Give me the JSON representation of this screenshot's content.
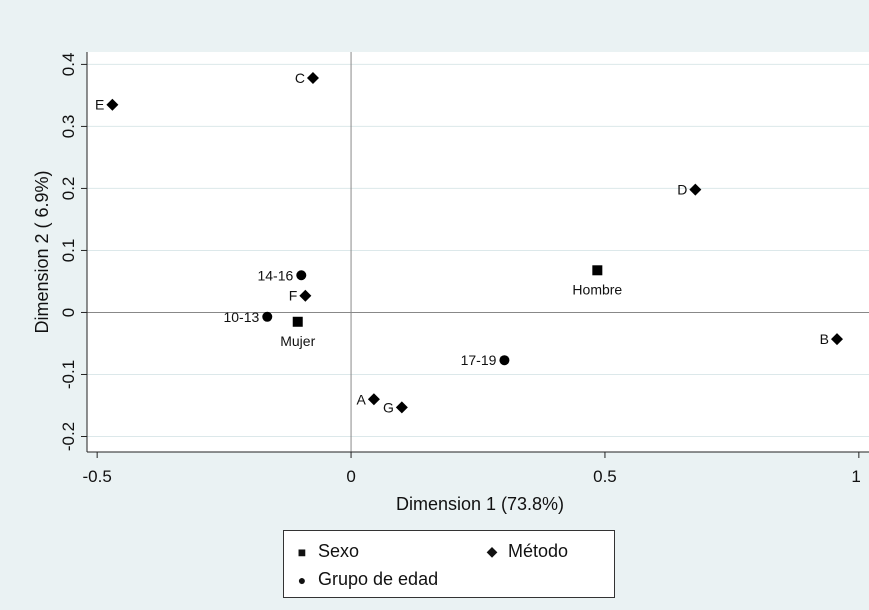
{
  "chart_data": {
    "type": "scatter",
    "title": "",
    "xlabel": "Dimension 1 (73.8%)",
    "ylabel": "Dimension 2 ( 6.9%)",
    "xlim": [
      -0.52,
      1.02
    ],
    "ylim": [
      -0.225,
      0.42
    ],
    "xticks": [
      -0.5,
      0,
      0.5,
      1
    ],
    "xtick_labels": [
      "-0.5",
      "0",
      "0.5",
      "1"
    ],
    "yticks": [
      -0.2,
      -0.1,
      0,
      0.1,
      0.2,
      0.3,
      0.4
    ],
    "ytick_labels": [
      "-0.2",
      "-0.1",
      "0",
      "0.1",
      "0.2",
      "0.3",
      "0.4"
    ],
    "grid": "horizontal",
    "reference_lines": {
      "x": 0,
      "y": 0
    },
    "colors": {
      "background": "#eaf2f3",
      "plot_background": "#ffffff",
      "grid": "#dce8ea",
      "marker": "#000000"
    },
    "legend_position": "bottom",
    "series": [
      {
        "name": "Sexo",
        "marker": "square",
        "points": [
          {
            "label": "Hombre",
            "x": 0.485,
            "y": 0.068,
            "label_pos": "below"
          },
          {
            "label": "Mujer",
            "x": -0.105,
            "y": -0.015,
            "label_pos": "below"
          }
        ]
      },
      {
        "name": "Grupo de edad",
        "marker": "circle",
        "points": [
          {
            "label": "10-13",
            "x": -0.165,
            "y": -0.007,
            "label_pos": "left"
          },
          {
            "label": "14-16",
            "x": -0.098,
            "y": 0.06,
            "label_pos": "left"
          },
          {
            "label": "17-19",
            "x": 0.302,
            "y": -0.077,
            "label_pos": "left"
          }
        ]
      },
      {
        "name": "Método",
        "marker": "diamond",
        "points": [
          {
            "label": "A",
            "x": 0.045,
            "y": -0.14,
            "label_pos": "left"
          },
          {
            "label": "B",
            "x": 0.957,
            "y": -0.043,
            "label_pos": "left"
          },
          {
            "label": "C",
            "x": -0.075,
            "y": 0.378,
            "label_pos": "left"
          },
          {
            "label": "D",
            "x": 0.678,
            "y": 0.198,
            "label_pos": "left"
          },
          {
            "label": "E",
            "x": -0.47,
            "y": 0.335,
            "label_pos": "left"
          },
          {
            "label": "F",
            "x": -0.09,
            "y": 0.027,
            "label_pos": "left"
          },
          {
            "label": "G",
            "x": 0.1,
            "y": -0.153,
            "label_pos": "left"
          }
        ]
      }
    ]
  },
  "legend": {
    "sexo": "Sexo",
    "grupo": "Grupo de edad",
    "metodo": "Método",
    "sym_square": "■",
    "sym_circle": "●",
    "sym_diamond": "◆"
  }
}
